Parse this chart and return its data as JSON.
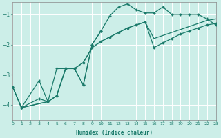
{
  "xlabel": "Humidex (Indice chaleur)",
  "background_color": "#cceee8",
  "grid_color": "#ffffff",
  "line_color": "#1a7a6a",
  "xlim": [
    0,
    23
  ],
  "ylim": [
    -4.5,
    -0.6
  ],
  "yticks": [
    -4,
    -3,
    -2,
    -1
  ],
  "xticks": [
    0,
    1,
    2,
    3,
    4,
    5,
    6,
    7,
    8,
    9,
    10,
    11,
    12,
    13,
    14,
    15,
    16,
    17,
    18,
    19,
    20,
    21,
    22,
    23
  ],
  "line1_x": [
    0,
    1,
    3,
    4,
    5,
    6,
    7,
    8,
    9,
    10,
    11,
    12,
    13,
    14,
    15,
    16,
    17,
    18,
    19,
    20,
    21,
    22,
    23
  ],
  "line1_y": [
    -3.4,
    -4.1,
    -3.2,
    -3.9,
    -3.7,
    -2.8,
    -2.8,
    -3.35,
    -2.0,
    -1.55,
    -1.05,
    -0.75,
    -0.65,
    -0.85,
    -0.95,
    -0.95,
    -0.75,
    -1.0,
    -1.0,
    -1.0,
    -1.0,
    -1.15,
    -1.35
  ],
  "line2_x": [
    1,
    3,
    4,
    5,
    6,
    7,
    8,
    9,
    10
  ],
  "line2_y": [
    -4.1,
    -3.8,
    -3.9,
    -2.8,
    -2.8,
    -2.8,
    -3.35,
    -2.0,
    -1.55
  ],
  "line3_x": [
    0,
    1,
    4,
    5,
    6,
    7,
    8,
    9,
    10,
    11,
    12,
    13,
    14,
    15,
    16,
    17,
    18,
    19,
    20,
    21,
    22,
    23
  ],
  "line3_y": [
    -3.4,
    -4.1,
    -3.9,
    -3.7,
    -2.8,
    -2.8,
    -2.6,
    -2.1,
    -1.9,
    -1.75,
    -1.6,
    -1.45,
    -1.35,
    -1.25,
    -2.1,
    -1.95,
    -1.8,
    -1.65,
    -1.55,
    -1.45,
    -1.35,
    -1.3
  ],
  "line4_x": [
    0,
    1,
    4,
    5,
    6,
    7,
    8,
    9,
    10,
    11,
    12,
    13,
    14,
    15,
    16,
    17,
    18,
    19,
    20,
    21,
    22,
    23
  ],
  "line4_y": [
    -3.4,
    -4.1,
    -3.9,
    -3.7,
    -2.8,
    -2.8,
    -2.6,
    -2.1,
    -1.9,
    -1.75,
    -1.6,
    -1.45,
    -1.35,
    -1.25,
    -1.8,
    -1.7,
    -1.6,
    -1.5,
    -1.4,
    -1.3,
    -1.2,
    -1.15
  ]
}
